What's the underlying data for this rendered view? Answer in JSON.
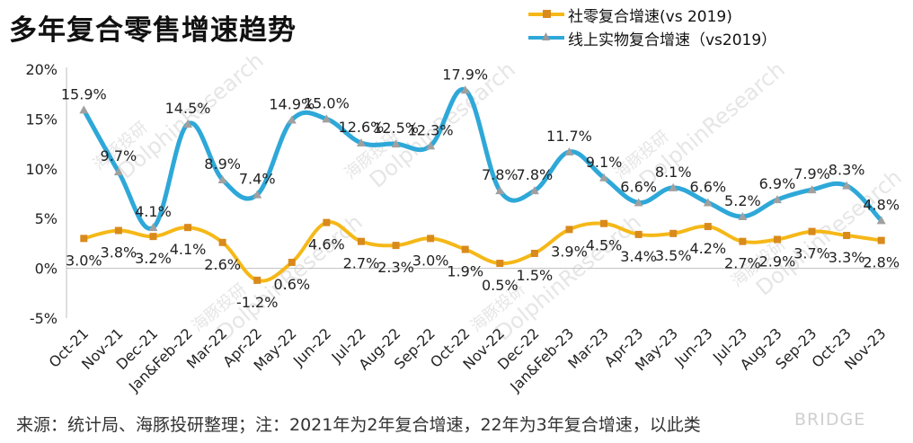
{
  "title": "多年复合零售增速趋势",
  "footnote": "来源：统计局、海豚投研整理；注：2021年为2年复合增速，22年为3年复合增速，以此类",
  "watermarks": [
    "海豚投研",
    "DolphinResearch",
    "BRIDGE"
  ],
  "chart_data": {
    "type": "line",
    "categories": [
      "Oct-21",
      "Nov-21",
      "Dec-21",
      "Jan&Feb-22",
      "Mar-22",
      "Apr-22",
      "May-22",
      "Jun-22",
      "Jul-22",
      "Aug-22",
      "Sep-22",
      "Oct-22",
      "Nov-22",
      "Dec-22",
      "Jan&Feb-23",
      "Mar-23",
      "Apr-23",
      "May-23",
      "Jun-23",
      "Jul-23",
      "Aug-23",
      "Sep-23",
      "Oct-23",
      "Nov-23"
    ],
    "series": [
      {
        "name": "社零复合增速(vs 2019)",
        "color": "#F5B818",
        "marker": "square",
        "values": [
          3.0,
          3.8,
          3.2,
          4.1,
          2.6,
          -1.2,
          0.6,
          4.6,
          2.7,
          2.3,
          3.0,
          1.9,
          0.5,
          1.5,
          3.9,
          4.5,
          3.4,
          3.5,
          4.2,
          2.7,
          2.9,
          3.7,
          3.3,
          2.8
        ],
        "labels": [
          "3.0%",
          "3.8%",
          "3.2%",
          "4.1%",
          "2.6%",
          "-1.2%",
          "0.6%",
          "4.6%",
          "2.7%",
          "2.3%",
          "3.0%",
          "1.9%",
          "0.5%",
          "1.5%",
          "3.9%",
          "4.5%",
          "3.4%",
          "3.5%",
          "4.2%",
          "2.7%",
          "2.9%",
          "3.7%",
          "3.3%",
          "2.8%"
        ]
      },
      {
        "name": "线上实物复合增速（vs2019）",
        "color": "#2EA8D8",
        "marker": "triangle",
        "values": [
          15.9,
          9.7,
          4.1,
          14.5,
          8.9,
          7.4,
          14.9,
          15.0,
          12.6,
          12.5,
          12.3,
          17.9,
          7.8,
          7.8,
          11.7,
          9.1,
          6.6,
          8.1,
          6.6,
          5.2,
          6.9,
          7.9,
          8.3,
          4.8
        ],
        "labels": [
          "15.9%",
          "9.7%",
          "4.1%",
          "14.5%",
          "8.9%",
          "7.4%",
          "14.9%",
          "15.0%",
          "12.6%",
          "12.5%",
          "12.3%",
          "17.9%",
          "7.8%",
          "7.8%",
          "11.7%",
          "9.1%",
          "6.6%",
          "8.1%",
          "6.6%",
          "5.2%",
          "6.9%",
          "7.9%",
          "8.3%",
          "4.8%"
        ]
      }
    ],
    "ylim": [
      -5,
      20
    ],
    "yticks": [
      -5,
      0,
      5,
      10,
      15,
      20
    ],
    "ytick_labels": [
      "-5%",
      "0%",
      "5%",
      "10%",
      "15%",
      "20%"
    ],
    "grid": false,
    "legend_position": "top-right"
  }
}
